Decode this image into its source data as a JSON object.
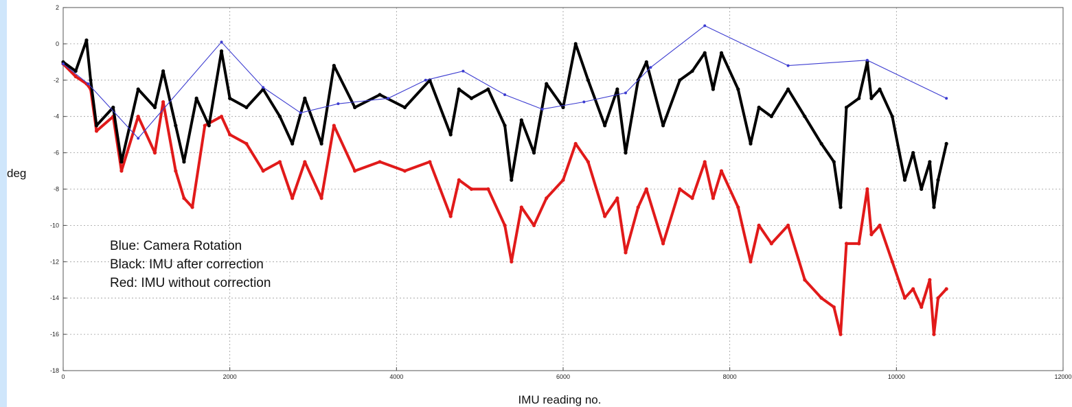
{
  "chart_data": {
    "type": "line",
    "xlabel": "IMU reading no.",
    "ylabel": "deg",
    "xlim": [
      0,
      12000
    ],
    "ylim": [
      -18,
      2
    ],
    "xticks": [
      0,
      2000,
      4000,
      6000,
      8000,
      10000,
      12000
    ],
    "yticks": [
      -18,
      -16,
      -14,
      -12,
      -10,
      -8,
      -6,
      -4,
      -2,
      0,
      2
    ],
    "grid": true,
    "annotations": [
      "Blue: Camera Rotation",
      "Black: IMU after correction",
      "Red: IMU without correction"
    ],
    "series": [
      {
        "color": "#3b3bd0",
        "style": "line-with-markers",
        "x": [
          0,
          300,
          900,
          1900,
          2400,
          2850,
          3300,
          3900,
          4350,
          4800,
          5300,
          5750,
          6250,
          6750,
          7050,
          7700,
          8700,
          9650,
          10600
        ],
        "y": [
          -1.1,
          -2.2,
          -5.2,
          0.1,
          -2.4,
          -3.8,
          -3.3,
          -3.0,
          -2.0,
          -1.5,
          -2.8,
          -3.6,
          -3.2,
          -2.7,
          -1.3,
          1.0,
          -1.2,
          -0.9,
          -3.0
        ]
      },
      {
        "color": "#000000",
        "style": "dense-markers",
        "x": [
          0,
          150,
          280,
          330,
          400,
          600,
          700,
          900,
          1100,
          1200,
          1350,
          1450,
          1600,
          1750,
          1900,
          2000,
          2200,
          2400,
          2600,
          2750,
          2900,
          3100,
          3250,
          3500,
          3800,
          4100,
          4400,
          4650,
          4750,
          4900,
          5100,
          5300,
          5380,
          5500,
          5650,
          5800,
          6000,
          6150,
          6300,
          6500,
          6650,
          6750,
          6900,
          7000,
          7200,
          7400,
          7550,
          7700,
          7800,
          7900,
          8100,
          8250,
          8350,
          8500,
          8700,
          8900,
          9100,
          9250,
          9330,
          9400,
          9550,
          9650,
          9700,
          9800,
          9950,
          10100,
          10200,
          10300,
          10400,
          10450,
          10500,
          10600
        ],
        "y": [
          -1.0,
          -1.5,
          0.2,
          -2.0,
          -4.5,
          -3.5,
          -6.5,
          -2.5,
          -3.5,
          -1.5,
          -4.5,
          -6.5,
          -3.0,
          -4.5,
          -0.4,
          -3.0,
          -3.5,
          -2.5,
          -4.0,
          -5.5,
          -3.0,
          -5.5,
          -1.2,
          -3.5,
          -2.8,
          -3.5,
          -2.0,
          -5.0,
          -2.5,
          -3.0,
          -2.5,
          -4.5,
          -7.5,
          -4.2,
          -6.0,
          -2.2,
          -3.5,
          0.0,
          -2.0,
          -4.5,
          -2.5,
          -6.0,
          -2.0,
          -1.0,
          -4.5,
          -2.0,
          -1.5,
          -0.5,
          -2.5,
          -0.5,
          -2.5,
          -5.5,
          -3.5,
          -4.0,
          -2.5,
          -4.0,
          -5.5,
          -6.5,
          -9.0,
          -3.5,
          -3.0,
          -1.0,
          -3.0,
          -2.5,
          -4.0,
          -7.5,
          -6.0,
          -8.0,
          -6.5,
          -9.0,
          -7.5,
          -5.5
        ]
      },
      {
        "color": "#e11a1a",
        "style": "dense-markers",
        "x": [
          0,
          150,
          280,
          330,
          400,
          600,
          700,
          900,
          1100,
          1200,
          1350,
          1450,
          1550,
          1700,
          1900,
          2000,
          2200,
          2400,
          2600,
          2750,
          2900,
          3100,
          3250,
          3500,
          3800,
          4100,
          4400,
          4650,
          4750,
          4900,
          5100,
          5300,
          5380,
          5500,
          5650,
          5800,
          6000,
          6150,
          6300,
          6500,
          6650,
          6750,
          6900,
          7000,
          7200,
          7400,
          7550,
          7700,
          7800,
          7900,
          8100,
          8250,
          8350,
          8500,
          8700,
          8900,
          9100,
          9250,
          9330,
          9400,
          9550,
          9650,
          9700,
          9800,
          9950,
          10100,
          10200,
          10300,
          10400,
          10450,
          10500,
          10600
        ],
        "y": [
          -1.1,
          -1.8,
          -2.2,
          -2.5,
          -4.8,
          -4.0,
          -7.0,
          -4.0,
          -6.0,
          -3.2,
          -7.0,
          -8.5,
          -9.0,
          -4.5,
          -4.0,
          -5.0,
          -5.5,
          -7.0,
          -6.5,
          -8.5,
          -6.5,
          -8.5,
          -4.5,
          -7.0,
          -6.5,
          -7.0,
          -6.5,
          -9.5,
          -7.5,
          -8.0,
          -8.0,
          -10.0,
          -12.0,
          -9.0,
          -10.0,
          -8.5,
          -7.5,
          -5.5,
          -6.5,
          -9.5,
          -8.5,
          -11.5,
          -9.0,
          -8.0,
          -11.0,
          -8.0,
          -8.5,
          -6.5,
          -8.5,
          -7.0,
          -9.0,
          -12.0,
          -10.0,
          -11.0,
          -10.0,
          -13.0,
          -14.0,
          -14.5,
          -16.0,
          -11.0,
          -11.0,
          -8.0,
          -10.5,
          -10.0,
          -12.0,
          -14.0,
          -13.5,
          -14.5,
          -13.0,
          -16.0,
          -14.0,
          -13.5
        ]
      }
    ]
  }
}
